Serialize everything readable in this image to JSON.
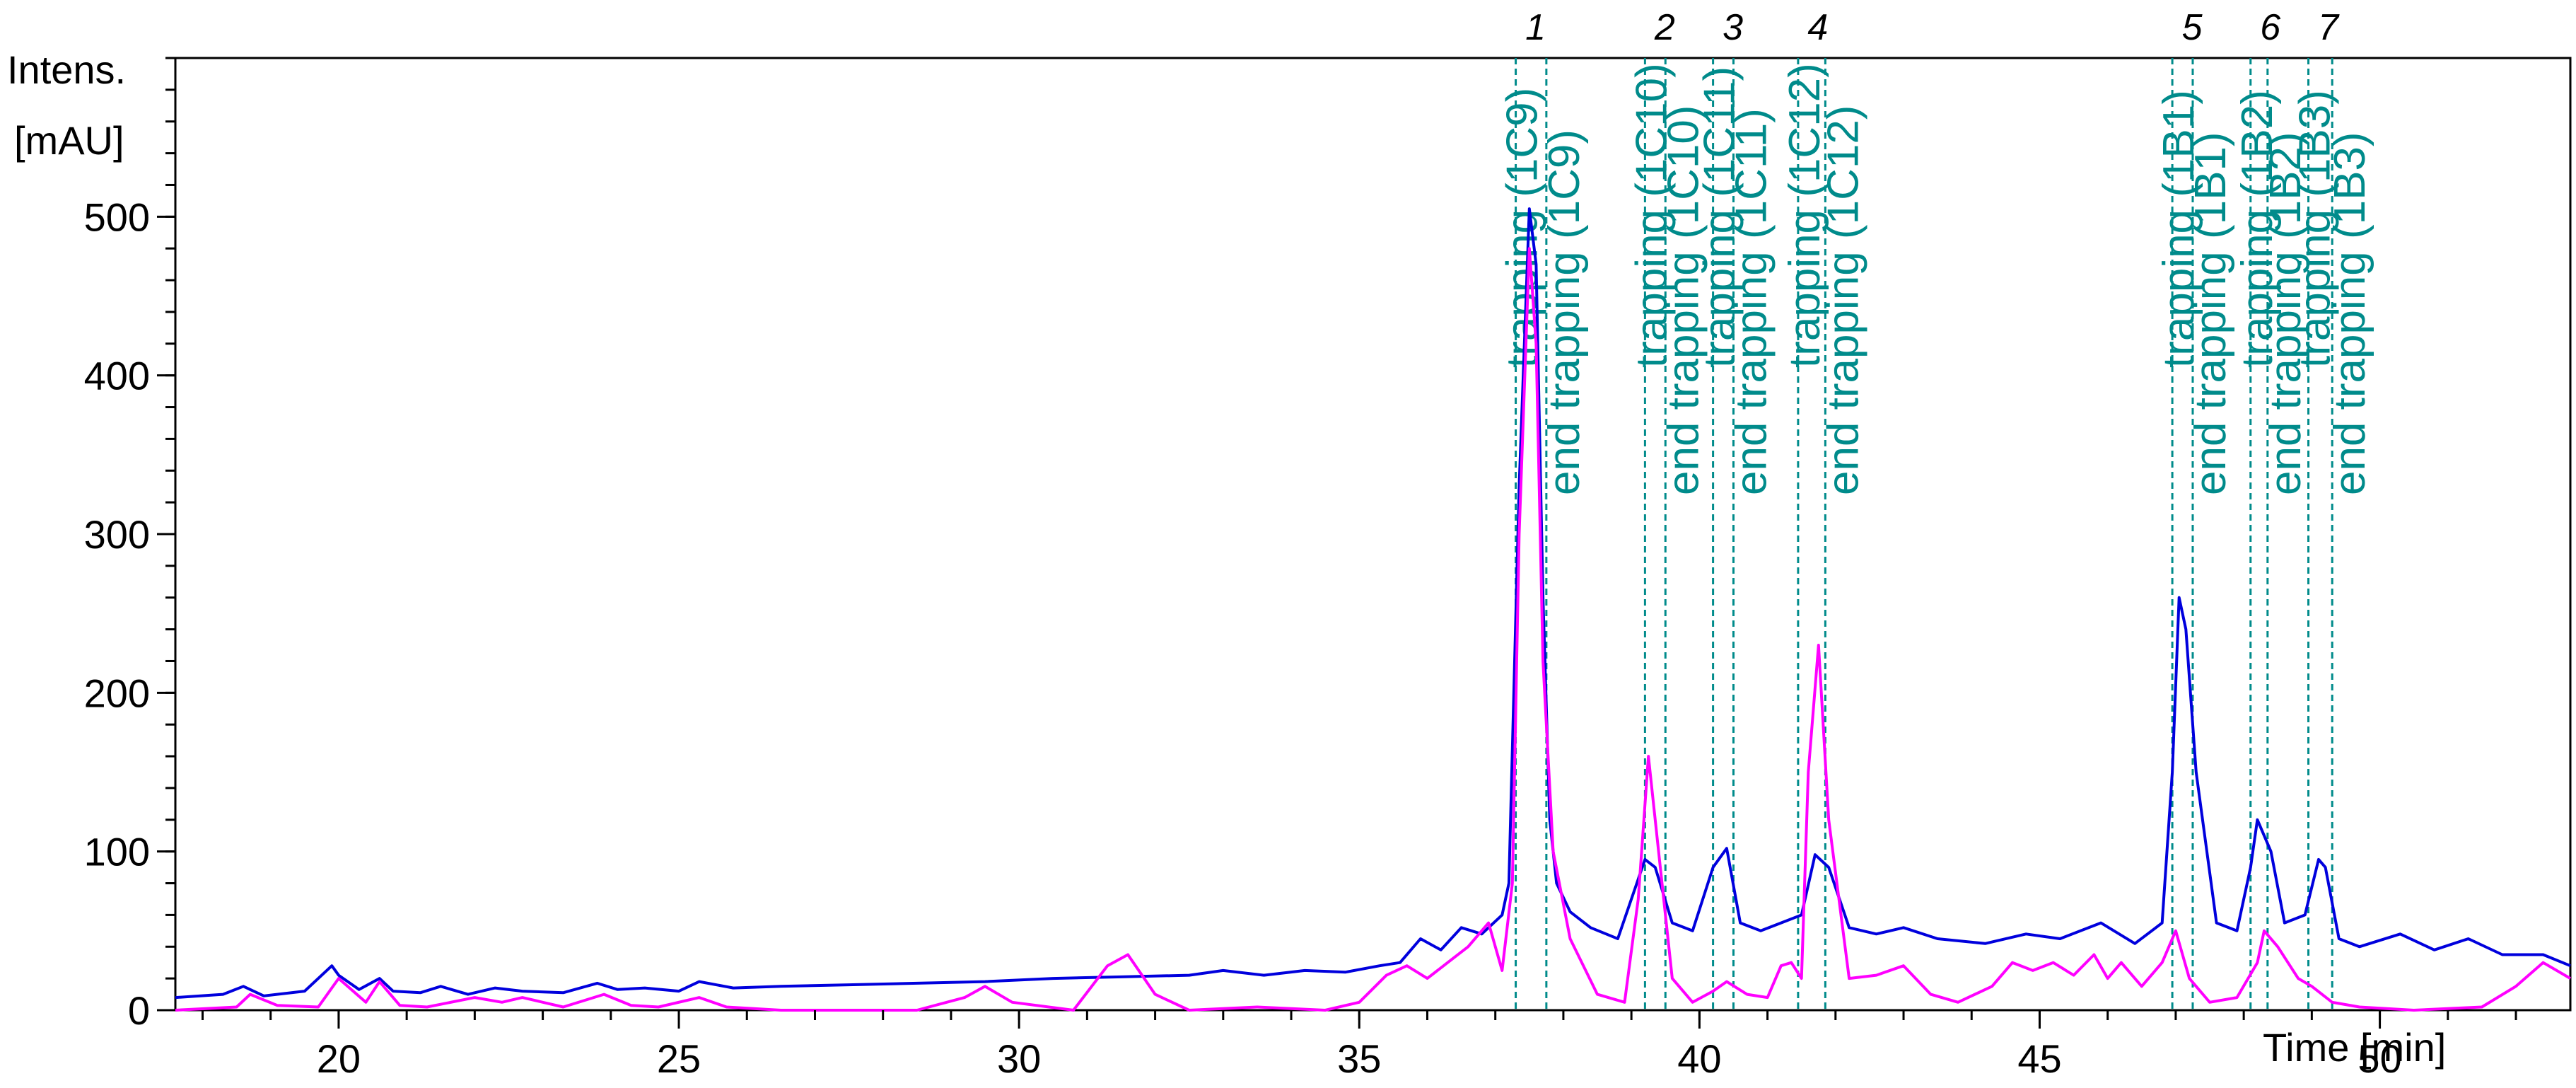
{
  "chart_data": {
    "type": "line",
    "title": "",
    "ylabel_line1": "Intens.",
    "ylabel_line2": "[mAU]",
    "xlabel": "Time [min]",
    "xlim": [
      17.6,
      52.8
    ],
    "ylim": [
      0,
      600
    ],
    "x_ticks": [
      20,
      25,
      30,
      35,
      40,
      45,
      50
    ],
    "y_ticks": [
      0,
      100,
      200,
      300,
      400,
      500
    ],
    "grid": false,
    "legend": "none",
    "colors": {
      "series_blue": "#0000dd",
      "series_magenta": "#ff00ff",
      "markers": "#008b8b"
    },
    "series": [
      {
        "color": "#0000dd",
        "x": [
          17.6,
          18.3,
          18.6,
          18.9,
          19.5,
          19.9,
          20.0,
          20.3,
          20.6,
          20.8,
          21.2,
          21.5,
          21.9,
          22.3,
          22.7,
          23.3,
          23.8,
          24.1,
          24.5,
          25.0,
          25.3,
          25.8,
          26.5,
          27.5,
          28.5,
          29.5,
          30.5,
          31.5,
          32.5,
          33.0,
          33.6,
          34.2,
          34.8,
          35.3,
          35.6,
          35.9,
          36.2,
          36.5,
          36.8,
          37.1,
          37.2,
          37.35,
          37.5,
          37.6,
          37.7,
          37.8,
          37.9,
          38.1,
          38.4,
          38.8,
          39.0,
          39.2,
          39.35,
          39.6,
          39.9,
          40.2,
          40.4,
          40.6,
          40.9,
          41.2,
          41.5,
          41.7,
          41.9,
          42.2,
          42.6,
          43.0,
          43.5,
          44.2,
          44.8,
          45.3,
          45.9,
          46.4,
          46.8,
          46.95,
          47.05,
          47.15,
          47.3,
          47.6,
          47.9,
          48.1,
          48.2,
          48.4,
          48.6,
          48.9,
          49.1,
          49.2,
          49.4,
          49.7,
          50.3,
          50.8,
          51.3,
          51.8,
          52.4,
          52.8
        ],
        "y": [
          8,
          10,
          15,
          9,
          12,
          28,
          22,
          13,
          20,
          12,
          11,
          15,
          10,
          14,
          12,
          11,
          17,
          13,
          14,
          12,
          18,
          14,
          15,
          16,
          17,
          18,
          20,
          21,
          22,
          25,
          22,
          25,
          24,
          28,
          30,
          45,
          38,
          52,
          48,
          60,
          80,
          330,
          505,
          470,
          260,
          120,
          80,
          62,
          52,
          45,
          70,
          95,
          90,
          55,
          50,
          90,
          102,
          55,
          50,
          55,
          60,
          98,
          90,
          52,
          48,
          52,
          45,
          42,
          48,
          45,
          55,
          42,
          55,
          150,
          260,
          240,
          150,
          55,
          50,
          90,
          120,
          100,
          55,
          60,
          95,
          90,
          45,
          40,
          48,
          38,
          45,
          35,
          35,
          28
        ]
      },
      {
        "color": "#ff00ff",
        "x": [
          17.6,
          18.5,
          18.7,
          19.1,
          19.7,
          20.0,
          20.4,
          20.6,
          20.9,
          21.3,
          22.0,
          22.4,
          22.7,
          23.3,
          23.9,
          24.3,
          24.7,
          25.3,
          25.7,
          26.5,
          28.5,
          29.2,
          29.5,
          29.9,
          30.8,
          31.3,
          31.6,
          32.0,
          32.5,
          33.5,
          34.5,
          35.0,
          35.4,
          35.7,
          36.0,
          36.3,
          36.6,
          36.9,
          37.1,
          37.25,
          37.35,
          37.5,
          37.6,
          37.7,
          37.85,
          38.1,
          38.5,
          38.9,
          39.1,
          39.25,
          39.4,
          39.6,
          39.9,
          40.2,
          40.4,
          40.7,
          41.0,
          41.2,
          41.35,
          41.5,
          41.6,
          41.75,
          41.9,
          42.2,
          42.6,
          43.0,
          43.4,
          43.8,
          44.3,
          44.6,
          44.9,
          45.2,
          45.5,
          45.8,
          46.0,
          46.2,
          46.5,
          46.8,
          47.0,
          47.2,
          47.5,
          47.9,
          48.2,
          48.3,
          48.5,
          48.8,
          49.0,
          49.3,
          49.7,
          50.5,
          51.5,
          52.0,
          52.4,
          52.8
        ],
        "y": [
          0,
          2,
          10,
          3,
          2,
          20,
          5,
          18,
          3,
          2,
          8,
          5,
          8,
          2,
          10,
          3,
          2,
          8,
          2,
          0,
          0,
          8,
          15,
          5,
          0,
          28,
          35,
          10,
          0,
          2,
          0,
          5,
          22,
          28,
          20,
          30,
          40,
          55,
          25,
          80,
          300,
          480,
          420,
          220,
          100,
          45,
          10,
          5,
          70,
          160,
          100,
          20,
          5,
          12,
          18,
          10,
          8,
          28,
          30,
          20,
          150,
          230,
          120,
          20,
          22,
          28,
          10,
          5,
          15,
          30,
          25,
          30,
          22,
          35,
          20,
          30,
          15,
          30,
          50,
          20,
          5,
          8,
          30,
          50,
          40,
          20,
          15,
          5,
          2,
          0,
          2,
          15,
          30,
          20
        ]
      }
    ],
    "fractions": [
      {
        "label": "1",
        "start_time": 37.3,
        "end_time": 37.75,
        "start_text": "trapping (1C9)",
        "end_text": "end trapping (1C9)"
      },
      {
        "label": "2",
        "start_time": 39.2,
        "end_time": 39.5,
        "start_text": "trapping (1C10)",
        "end_text": "end trapping (1C10)"
      },
      {
        "label": "3",
        "start_time": 40.2,
        "end_time": 40.5,
        "start_text": "trapping (1C11)",
        "end_text": "end trapping (1C11)"
      },
      {
        "label": "4",
        "start_time": 41.45,
        "end_time": 41.85,
        "start_text": "trapping (1C12)",
        "end_text": "end trapping (1C12)"
      },
      {
        "label": "5",
        "start_time": 46.95,
        "end_time": 47.25,
        "start_text": "trapping (1B1)",
        "end_text": "end trapping (1B1)"
      },
      {
        "label": "6",
        "start_time": 48.1,
        "end_time": 48.35,
        "start_text": "trapping (1B2)",
        "end_text": "end trapping (1B2)"
      },
      {
        "label": "7",
        "start_time": 48.95,
        "end_time": 49.3,
        "start_text": "trapping (1B3)",
        "end_text": "end trapping (1B3)"
      }
    ]
  }
}
